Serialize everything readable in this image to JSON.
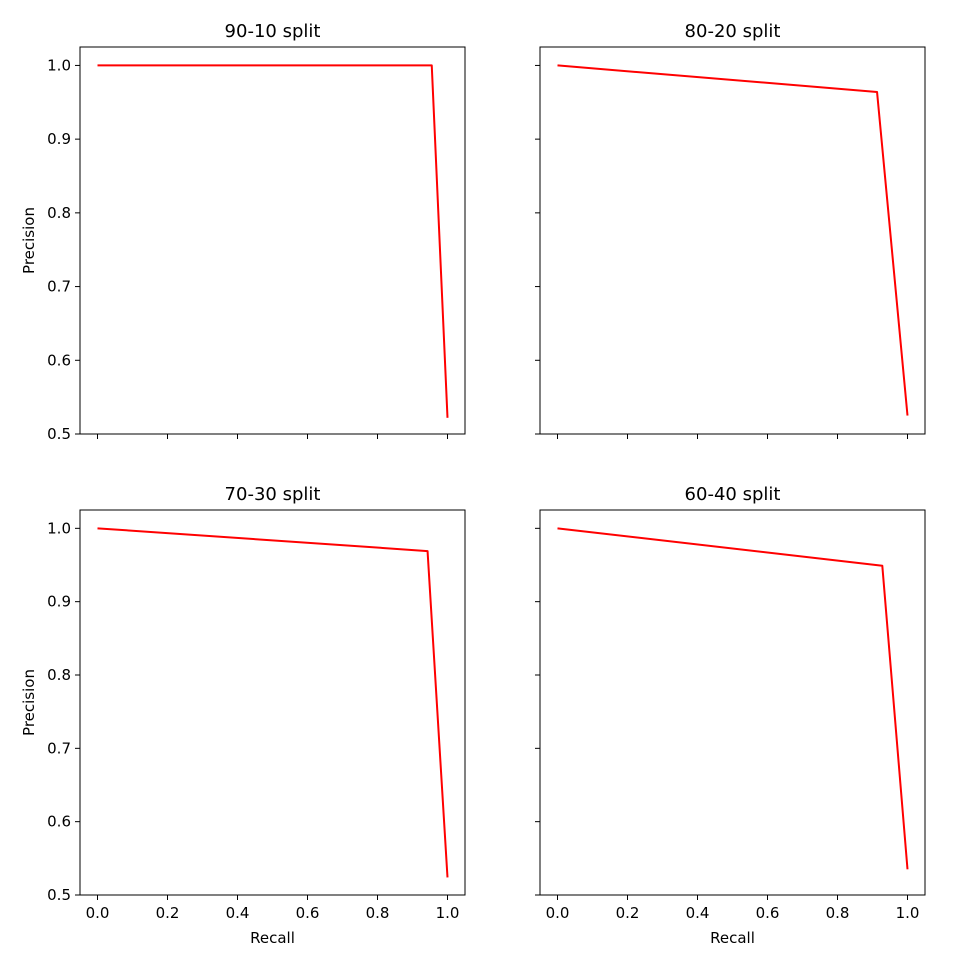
{
  "chart_data": [
    {
      "type": "line",
      "title": "90-10 split",
      "xlabel": "",
      "ylabel": "Precision",
      "xlim": [
        -0.05,
        1.05
      ],
      "ylim": [
        0.5,
        1.025
      ],
      "xticks": [
        0.0,
        0.2,
        0.4,
        0.6,
        0.8,
        1.0
      ],
      "yticks": [
        0.5,
        0.6,
        0.7,
        0.8,
        0.9,
        1.0
      ],
      "show_xtick_labels": false,
      "show_ytick_labels": true,
      "grid": false,
      "series": [
        {
          "color": "#ff0000",
          "x": [
            0.0,
            0.955,
            1.0
          ],
          "y": [
            1.0,
            1.0,
            0.522
          ]
        }
      ]
    },
    {
      "type": "line",
      "title": "80-20 split",
      "xlabel": "",
      "ylabel": "",
      "xlim": [
        -0.05,
        1.05
      ],
      "ylim": [
        0.5,
        1.025
      ],
      "xticks": [
        0.0,
        0.2,
        0.4,
        0.6,
        0.8,
        1.0
      ],
      "yticks": [
        0.5,
        0.6,
        0.7,
        0.8,
        0.9,
        1.0
      ],
      "show_xtick_labels": false,
      "show_ytick_labels": false,
      "grid": false,
      "series": [
        {
          "color": "#ff0000",
          "x": [
            0.0,
            0.913,
            1.0
          ],
          "y": [
            1.0,
            0.964,
            0.525
          ]
        }
      ]
    },
    {
      "type": "line",
      "title": "70-30 split",
      "xlabel": "Recall",
      "ylabel": "Precision",
      "xlim": [
        -0.05,
        1.05
      ],
      "ylim": [
        0.5,
        1.025
      ],
      "xticks": [
        0.0,
        0.2,
        0.4,
        0.6,
        0.8,
        1.0
      ],
      "yticks": [
        0.5,
        0.6,
        0.7,
        0.8,
        0.9,
        1.0
      ],
      "show_xtick_labels": true,
      "show_ytick_labels": true,
      "grid": false,
      "series": [
        {
          "color": "#ff0000",
          "x": [
            0.0,
            0.943,
            1.0
          ],
          "y": [
            1.0,
            0.969,
            0.524
          ]
        }
      ]
    },
    {
      "type": "line",
      "title": "60-40 split",
      "xlabel": "Recall",
      "ylabel": "",
      "xlim": [
        -0.05,
        1.05
      ],
      "ylim": [
        0.5,
        1.025
      ],
      "xticks": [
        0.0,
        0.2,
        0.4,
        0.6,
        0.8,
        1.0
      ],
      "yticks": [
        0.5,
        0.6,
        0.7,
        0.8,
        0.9,
        1.0
      ],
      "show_xtick_labels": true,
      "show_ytick_labels": false,
      "grid": false,
      "series": [
        {
          "color": "#ff0000",
          "x": [
            0.0,
            0.928,
            1.0
          ],
          "y": [
            1.0,
            0.949,
            0.535
          ]
        }
      ]
    }
  ]
}
